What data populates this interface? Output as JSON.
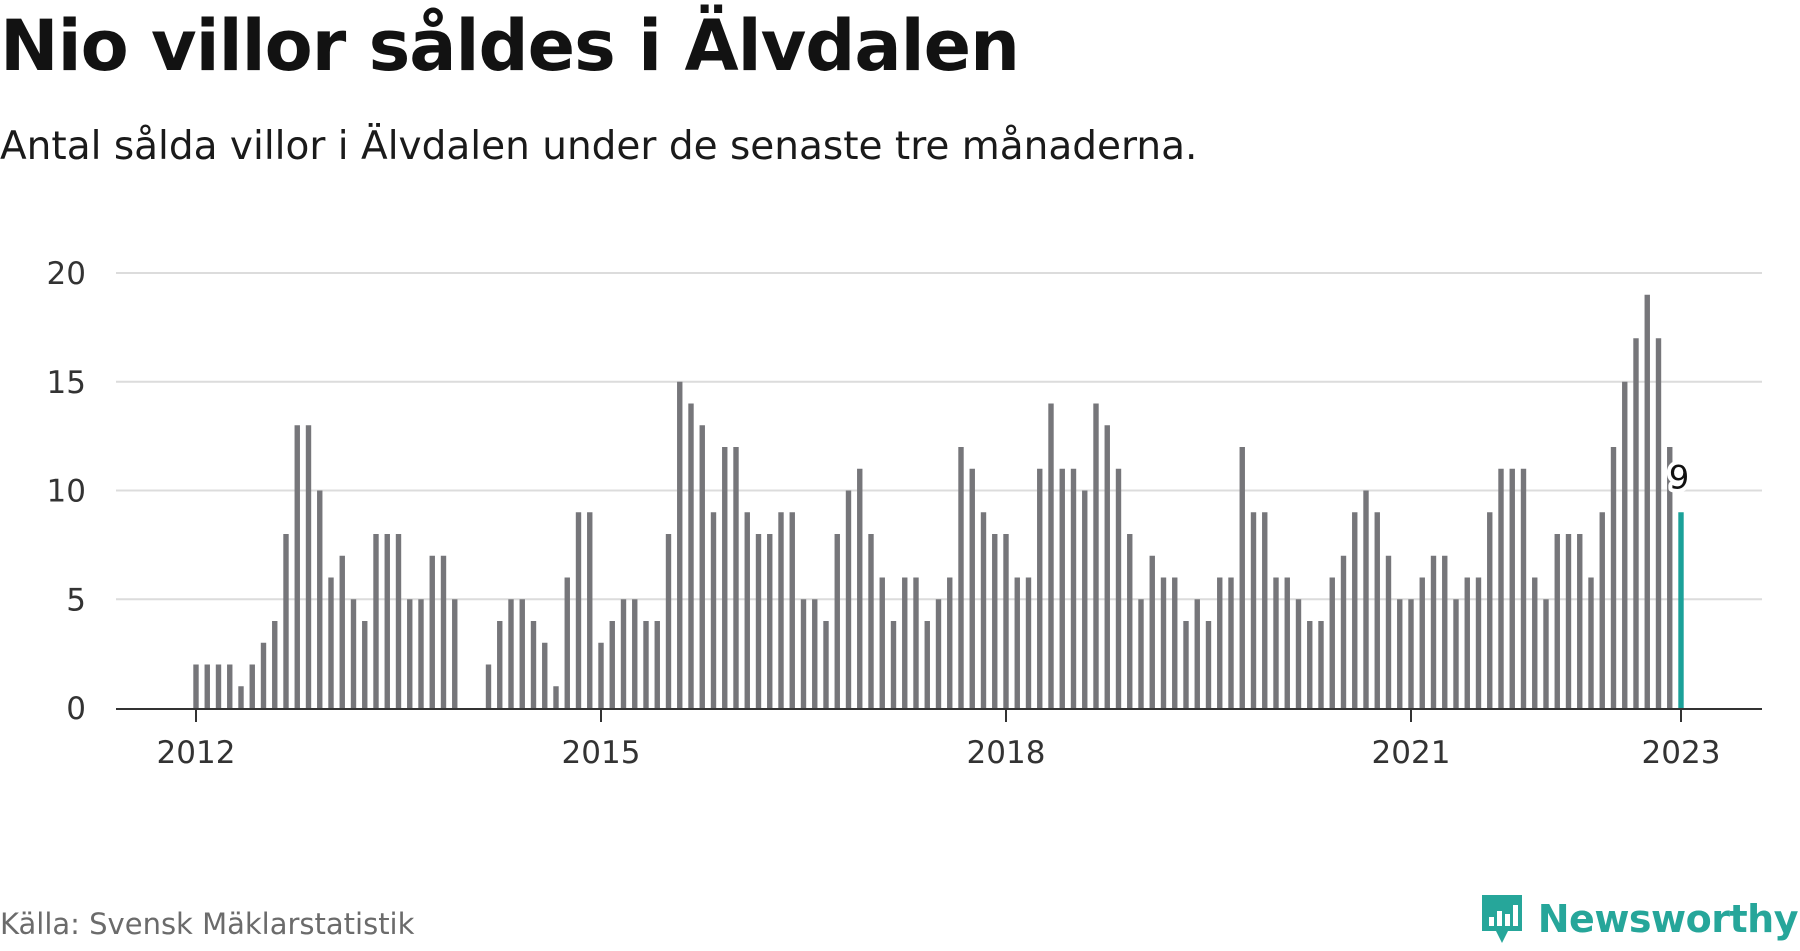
{
  "header": {
    "title": "Nio villor såldes i Älvdalen",
    "subtitle": "Antal sålda villor i Älvdalen under de senaste tre månaderna."
  },
  "footer": {
    "source": "Källa: Svensk Mäklarstatistik",
    "brand": "Newsworthy"
  },
  "colors": {
    "bar": "#76767a",
    "highlight": "#1ba199",
    "grid": "#dcdcdc",
    "axis": "#333333",
    "brand": "#26a69a"
  },
  "icons": {
    "brand_logo": "newsworthy-logo-icon"
  },
  "chart_data": {
    "type": "bar",
    "title": "Nio villor såldes i Älvdalen",
    "subtitle": "Antal sålda villor i Älvdalen under de senaste tre månaderna.",
    "xlabel": "",
    "ylabel": "",
    "ylim": [
      0,
      20
    ],
    "yticks": [
      0,
      5,
      10,
      15,
      20
    ],
    "xticks": [
      {
        "label": "2012",
        "date": "2012-01"
      },
      {
        "label": "2015",
        "date": "2015-01"
      },
      {
        "label": "2018",
        "date": "2018-01"
      },
      {
        "label": "2021",
        "date": "2021-01"
      },
      {
        "label": "2023",
        "date": "2023-01"
      }
    ],
    "x": [
      "2012-01",
      "2012-02",
      "2012-03",
      "2012-04",
      "2012-05",
      "2012-06",
      "2012-07",
      "2012-08",
      "2012-09",
      "2012-10",
      "2012-11",
      "2012-12",
      "2013-01",
      "2013-02",
      "2013-03",
      "2013-04",
      "2013-05",
      "2013-06",
      "2013-07",
      "2013-08",
      "2013-09",
      "2013-10",
      "2013-11",
      "2013-12",
      "2014-01",
      "2014-02",
      "2014-03",
      "2014-04",
      "2014-05",
      "2014-06",
      "2014-07",
      "2014-08",
      "2014-09",
      "2014-10",
      "2014-11",
      "2014-12",
      "2015-01",
      "2015-02",
      "2015-03",
      "2015-04",
      "2015-05",
      "2015-06",
      "2015-07",
      "2015-08",
      "2015-09",
      "2015-10",
      "2015-11",
      "2015-12",
      "2016-01",
      "2016-02",
      "2016-03",
      "2016-04",
      "2016-05",
      "2016-06",
      "2016-07",
      "2016-08",
      "2016-09",
      "2016-10",
      "2016-11",
      "2016-12",
      "2017-01",
      "2017-02",
      "2017-03",
      "2017-04",
      "2017-05",
      "2017-06",
      "2017-07",
      "2017-08",
      "2017-09",
      "2017-10",
      "2017-11",
      "2017-12",
      "2018-01",
      "2018-02",
      "2018-03",
      "2018-04",
      "2018-05",
      "2018-06",
      "2018-07",
      "2018-08",
      "2018-09",
      "2018-10",
      "2018-11",
      "2018-12",
      "2019-01",
      "2019-02",
      "2019-03",
      "2019-04",
      "2019-05",
      "2019-06",
      "2019-07",
      "2019-08",
      "2019-09",
      "2019-10",
      "2019-11",
      "2019-12",
      "2020-01",
      "2020-02",
      "2020-03",
      "2020-04",
      "2020-05",
      "2020-06",
      "2020-07",
      "2020-08",
      "2020-09",
      "2020-10",
      "2020-11",
      "2020-12",
      "2021-01",
      "2021-02",
      "2021-03",
      "2021-04",
      "2021-05",
      "2021-06",
      "2021-07",
      "2021-08",
      "2021-09",
      "2021-10",
      "2021-11",
      "2021-12",
      "2022-01",
      "2022-02",
      "2022-03",
      "2022-04",
      "2022-05",
      "2022-06",
      "2022-07",
      "2022-08",
      "2022-09",
      "2022-10",
      "2022-11",
      "2022-12",
      "2023-01"
    ],
    "values": [
      2,
      2,
      2,
      2,
      1,
      2,
      3,
      4,
      8,
      13,
      13,
      10,
      6,
      7,
      5,
      4,
      8,
      8,
      8,
      5,
      5,
      7,
      7,
      5,
      null,
      null,
      2,
      4,
      5,
      5,
      4,
      3,
      1,
      6,
      9,
      9,
      3,
      4,
      5,
      5,
      4,
      4,
      8,
      15,
      14,
      13,
      9,
      12,
      12,
      9,
      8,
      8,
      9,
      9,
      5,
      5,
      4,
      8,
      10,
      11,
      8,
      6,
      4,
      6,
      6,
      4,
      5,
      6,
      12,
      11,
      9,
      8,
      8,
      6,
      6,
      11,
      14,
      11,
      11,
      10,
      14,
      13,
      11,
      8,
      5,
      7,
      6,
      6,
      4,
      5,
      4,
      6,
      6,
      12,
      9,
      9,
      6,
      6,
      5,
      4,
      4,
      6,
      7,
      9,
      10,
      9,
      7,
      5,
      5,
      6,
      7,
      7,
      5,
      6,
      6,
      9,
      11,
      11,
      11,
      6,
      5,
      8,
      8,
      8,
      6,
      9,
      12,
      15,
      17,
      19,
      17,
      12,
      9
    ],
    "highlight": {
      "date": "2023-01",
      "value": 9,
      "label": "9"
    }
  }
}
